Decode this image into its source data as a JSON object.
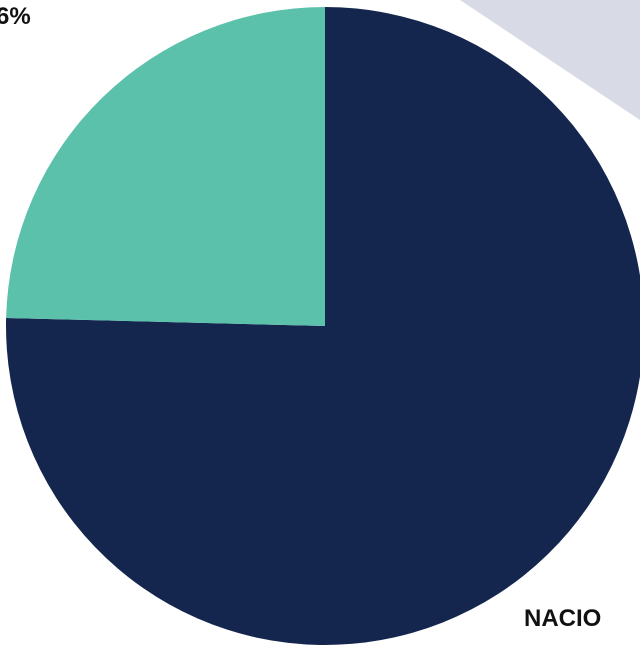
{
  "colors": {
    "background": "#ffffff",
    "watermark": "#d8dbe6"
  },
  "chart_data": {
    "type": "pie",
    "slices": [
      {
        "label": "",
        "value": 75.4,
        "color": "#14264d"
      },
      {
        "label": "",
        "value": 24.6,
        "color": "#5cc1ab"
      }
    ],
    "data_labels": [
      {
        "text": "6%"
      },
      {
        "text": "NACIO"
      }
    ],
    "start_angle_deg": 0,
    "direction": "clockwise"
  }
}
